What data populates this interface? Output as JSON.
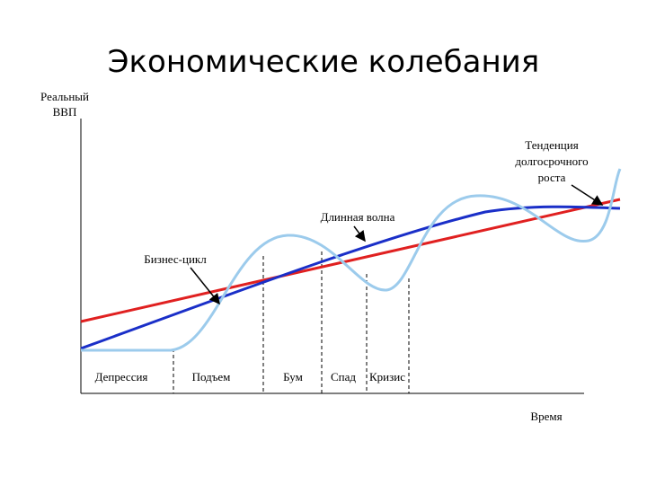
{
  "title": "Экономические колебания",
  "y_axis_label": [
    "Реальный",
    "ВВП"
  ],
  "x_axis_label": "Время",
  "annotations": {
    "trend": [
      "Тенденция",
      "долгосрочного",
      "роста"
    ],
    "long_wave": "Длинная волна",
    "business_cycle": "Бизнес-цикл"
  },
  "phases": [
    "Депрессия",
    "Подъем",
    "Бум",
    "Спад",
    "Кризис"
  ]
}
